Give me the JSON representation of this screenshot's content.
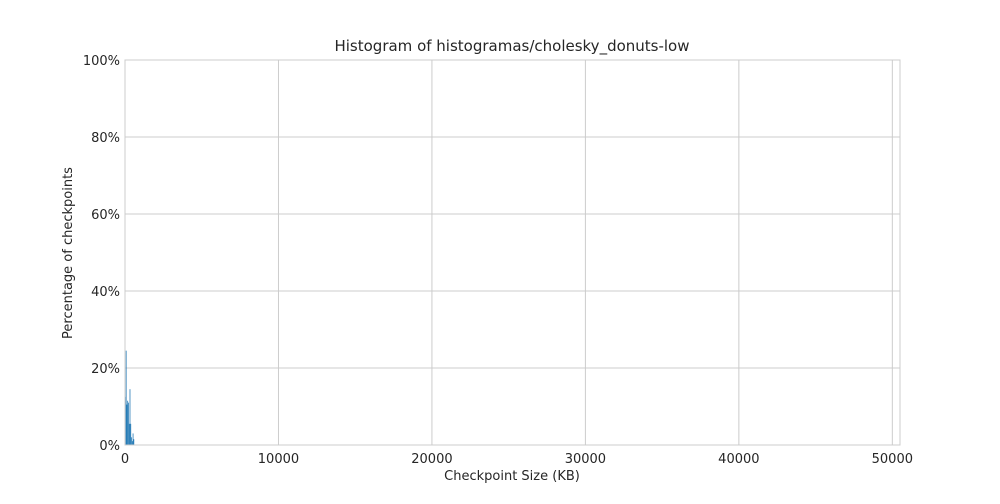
{
  "chart_data": {
    "type": "bar",
    "title": "Histogram of histogramas/cholesky_donuts-low",
    "xlabel": "Checkpoint Size (KB)",
    "ylabel": "Percentage of checkpoints",
    "xlim": [
      0,
      50500
    ],
    "ylim": [
      0,
      100
    ],
    "x_ticks": [
      0,
      10000,
      20000,
      30000,
      40000,
      50000
    ],
    "x_tick_labels": [
      "0",
      "10000",
      "20000",
      "30000",
      "40000",
      "50000"
    ],
    "y_ticks": [
      0,
      20,
      40,
      60,
      80,
      100
    ],
    "y_tick_labels": [
      "0%",
      "20%",
      "40%",
      "60%",
      "80%",
      "100%"
    ],
    "grid": true,
    "bar_color": "#1f77b4",
    "bins": [
      {
        "x0": 0,
        "x1": 50,
        "value": 12.5
      },
      {
        "x0": 50,
        "x1": 100,
        "value": 24.5
      },
      {
        "x0": 100,
        "x1": 150,
        "value": 10.5
      },
      {
        "x0": 150,
        "x1": 200,
        "value": 11.5
      },
      {
        "x0": 200,
        "x1": 250,
        "value": 11.0
      },
      {
        "x0": 250,
        "x1": 300,
        "value": 5.5
      },
      {
        "x0": 300,
        "x1": 350,
        "value": 14.5
      },
      {
        "x0": 350,
        "x1": 400,
        "value": 5.5
      },
      {
        "x0": 400,
        "x1": 450,
        "value": 2.0
      },
      {
        "x0": 450,
        "x1": 500,
        "value": 1.0
      },
      {
        "x0": 500,
        "x1": 550,
        "value": 3.0
      },
      {
        "x0": 550,
        "x1": 600,
        "value": 1.5
      }
    ]
  }
}
